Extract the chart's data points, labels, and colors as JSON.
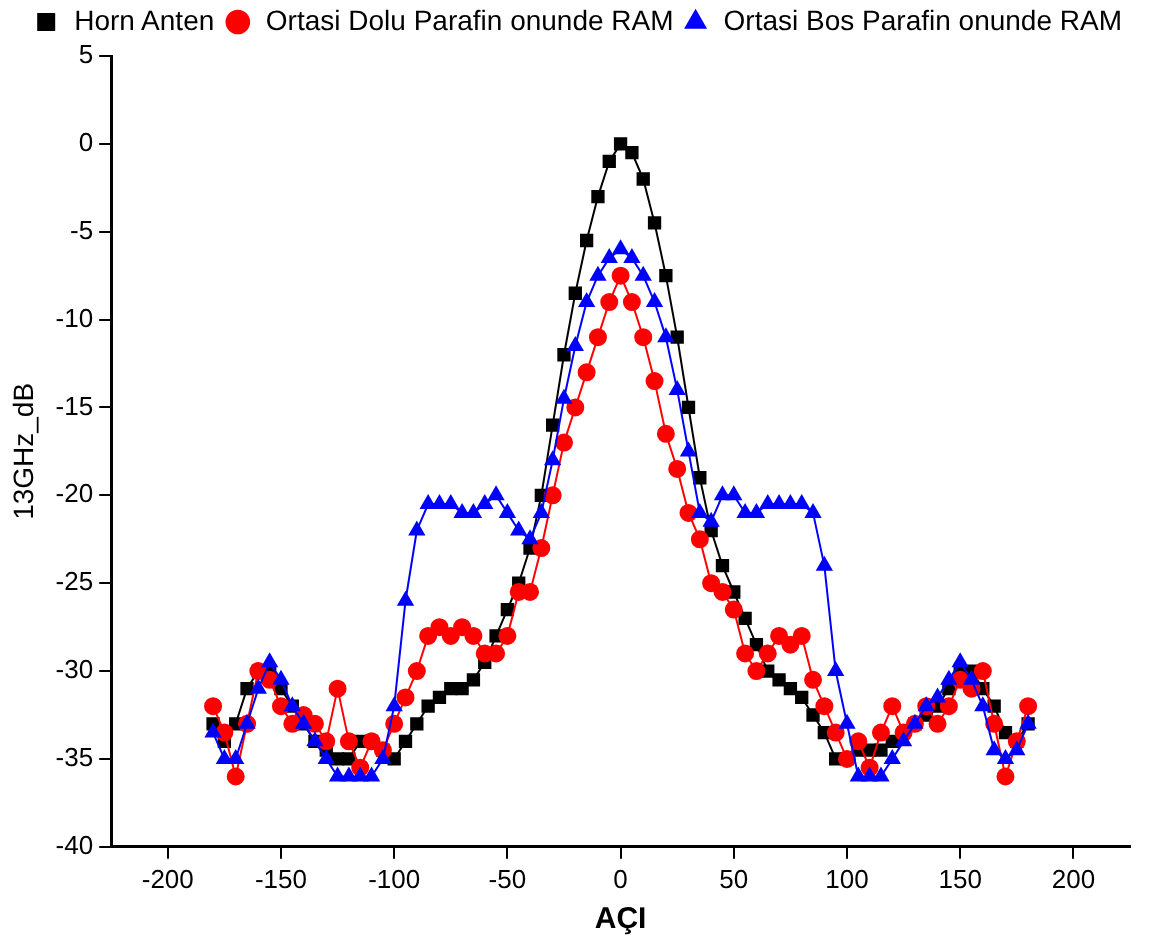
{
  "chart_data": {
    "type": "line",
    "xlabel": "AÇI",
    "ylabel": "13GHz_dB",
    "x": [
      -180,
      -175,
      -170,
      -165,
      -160,
      -155,
      -150,
      -145,
      -140,
      -135,
      -130,
      -125,
      -120,
      -115,
      -110,
      -105,
      -100,
      -95,
      -90,
      -85,
      -80,
      -75,
      -70,
      -65,
      -60,
      -55,
      -50,
      -45,
      -40,
      -35,
      -30,
      -25,
      -20,
      -15,
      -10,
      -5,
      0,
      5,
      10,
      15,
      20,
      25,
      30,
      35,
      40,
      45,
      50,
      55,
      60,
      65,
      70,
      75,
      80,
      85,
      90,
      95,
      100,
      105,
      110,
      115,
      120,
      125,
      130,
      135,
      140,
      145,
      150,
      155,
      160,
      165,
      170,
      175,
      180
    ],
    "series": [
      {
        "name": "Horn Anten",
        "color": "#000000",
        "marker": "square",
        "values": [
          -33,
          -34,
          -33,
          -31,
          -30,
          -30,
          -31,
          -32,
          -33,
          -34,
          -34.5,
          -35,
          -35,
          -34,
          -34,
          -34.5,
          -35,
          -34,
          -33,
          -32,
          -31.5,
          -31,
          -31,
          -30.5,
          -29.5,
          -28,
          -26.5,
          -25,
          -23,
          -20,
          -16,
          -12,
          -8.5,
          -5.5,
          -3,
          -1,
          0,
          -0.5,
          -2,
          -4.5,
          -7.5,
          -11,
          -15,
          -19,
          -22,
          -24,
          -25.5,
          -27,
          -28.5,
          -30,
          -30.5,
          -31,
          -31.5,
          -32.5,
          -33.5,
          -35,
          -35,
          -34.5,
          -34.5,
          -34.5,
          -34,
          -33.5,
          -33,
          -32.5,
          -32,
          -31,
          -30,
          -30,
          -31,
          -32,
          -33.5,
          -34,
          -33
        ]
      },
      {
        "name": "Ortasi Dolu Parafin onunde RAM",
        "color": "#ff0000",
        "marker": "circle",
        "values": [
          -32,
          -33.5,
          -36,
          -33,
          -30,
          -30.5,
          -32,
          -33,
          -32.5,
          -33,
          -34,
          -31,
          -34,
          -35.5,
          -34,
          -34.5,
          -33,
          -31.5,
          -30,
          -28,
          -27.5,
          -28,
          -27.5,
          -28,
          -29,
          -29,
          -28,
          -25.5,
          -25.5,
          -23,
          -20,
          -17,
          -15,
          -13,
          -11,
          -9,
          -7.5,
          -9,
          -11,
          -13.5,
          -16.5,
          -18.5,
          -21,
          -22.5,
          -25,
          -25.5,
          -26.5,
          -29,
          -30,
          -29,
          -28,
          -28.5,
          -28,
          -30.5,
          -32,
          -33.5,
          -35,
          -34,
          -35.5,
          -33.5,
          -32,
          -33.5,
          -33,
          -32,
          -33,
          -32,
          -30.5,
          -31,
          -30,
          -33,
          -36,
          -34,
          -32
        ]
      },
      {
        "name": "Ortasi Bos Parafin onunde RAM",
        "color": "#0000ff",
        "marker": "triangle",
        "values": [
          -33.5,
          -35,
          -35,
          -33,
          -31,
          -29.5,
          -30.5,
          -32,
          -33,
          -34,
          -35,
          -36,
          -36,
          -36,
          -36,
          -35,
          -32,
          -26,
          -22,
          -20.5,
          -20.5,
          -20.5,
          -21,
          -21,
          -20.5,
          -20,
          -21,
          -22,
          -22.5,
          -21,
          -18,
          -14.5,
          -11.5,
          -9,
          -7.5,
          -6.5,
          -6,
          -6.5,
          -7.5,
          -9,
          -11,
          -14,
          -17.5,
          -21,
          -21.5,
          -20,
          -20,
          -21,
          -21,
          -20.5,
          -20.5,
          -20.5,
          -20.5,
          -21,
          -24,
          -30,
          -33,
          -36,
          -36,
          -36,
          -35,
          -34,
          -33,
          -32,
          -31.5,
          -30.5,
          -29.5,
          -30.5,
          -32,
          -34.5,
          -35,
          -34.5,
          -33
        ]
      }
    ],
    "xlim": [
      -225,
      225
    ],
    "xticks": [
      -200,
      -150,
      -100,
      -50,
      0,
      50,
      100,
      150,
      200
    ],
    "ylim": [
      -40,
      5
    ],
    "yticks": [
      -40,
      -35,
      -30,
      -25,
      -20,
      -15,
      -10,
      -5,
      0,
      5
    ],
    "grid": false,
    "legend": "top right",
    "line_style": "solid"
  }
}
